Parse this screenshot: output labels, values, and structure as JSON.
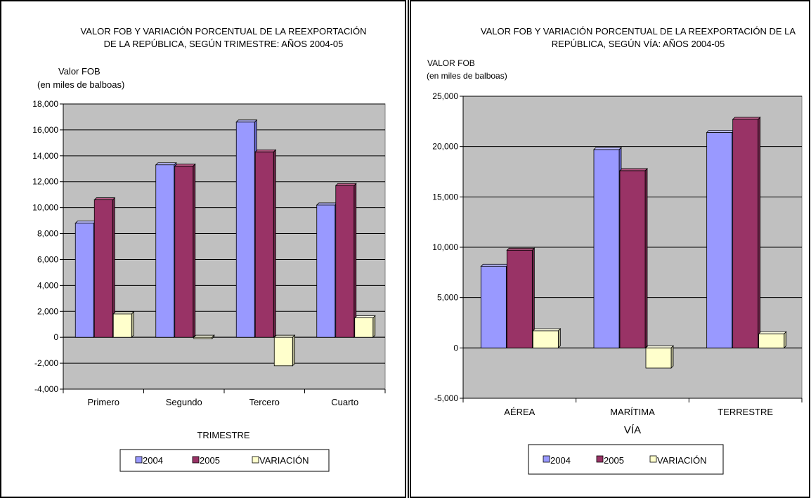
{
  "colors": {
    "s2004_front": "#9999ff",
    "s2004_top": "#bbbbff",
    "s2004_side": "#6666cc",
    "s2005_front": "#993366",
    "s2005_top": "#b85a85",
    "s2005_side": "#6b2447",
    "var_front": "#ffffcc",
    "var_top": "#ffffe6",
    "var_side": "#b3b38f",
    "plot_bg": "#c0c0c0",
    "plot_floor": "#9a9a9a"
  },
  "legend": {
    "items": [
      {
        "label": "2004",
        "color": "#9999ff"
      },
      {
        "label": "2005",
        "color": "#993366"
      },
      {
        "label": "VARIACIÓN",
        "color": "#ffffcc"
      }
    ]
  },
  "chart_data": [
    {
      "type": "bar",
      "title_line1": "VALOR FOB Y VARIACIÓN  PORCENTUAL DE LA REEXPORTACIÓN",
      "title_line2": "DE LA REPÚBLICA, SEGÚN TRIMESTRE:  AÑOS 2004-05",
      "ylabel_line1": "Valor FOB",
      "ylabel_line2": "(en miles de balboas)",
      "xlabel": "TRIMESTRE",
      "categories": [
        "Primero",
        "Segundo",
        "Tercero",
        "Cuarto"
      ],
      "series": [
        {
          "name": "2004",
          "values": [
            8800,
            13300,
            16600,
            10200
          ]
        },
        {
          "name": "2005",
          "values": [
            10600,
            13200,
            14300,
            11700
          ]
        },
        {
          "name": "VARIACIÓN",
          "values": [
            1800,
            -100,
            -2200,
            1500
          ]
        }
      ],
      "ylim": [
        -4000,
        18000
      ],
      "yticks": [
        -4000,
        -2000,
        0,
        2000,
        4000,
        6000,
        8000,
        10000,
        12000,
        14000,
        16000,
        18000
      ],
      "ytick_labels": [
        "-4,000",
        "-2,000",
        "0",
        "2,000",
        "4,000",
        "6,000",
        "8,000",
        "10,000",
        "12,000",
        "14,000",
        "16,000",
        "18,000"
      ],
      "grid": true,
      "legend_position": "bottom"
    },
    {
      "type": "bar",
      "title_line1": "VALOR FOB Y VARIACIÓN PORCENTUAL DE LA REEXPORTACIÓN DE LA",
      "title_line2": "REPÚBLICA, SEGÚN VÍA:  AÑOS 2004-05",
      "ylabel_line1": "VALOR FOB",
      "ylabel_line2": "(en miles de balboas)",
      "xlabel": "VÍA",
      "categories": [
        "AÉREA",
        "MARÍTIMA",
        "TERRESTRE"
      ],
      "series": [
        {
          "name": "2004",
          "values": [
            8100,
            19700,
            21400
          ]
        },
        {
          "name": "2005",
          "values": [
            9700,
            17600,
            22700
          ]
        },
        {
          "name": "VARIACIÓN",
          "values": [
            1700,
            -2000,
            1400
          ]
        }
      ],
      "ylim": [
        -5000,
        25000
      ],
      "yticks": [
        -5000,
        0,
        5000,
        10000,
        15000,
        20000,
        25000
      ],
      "ytick_labels": [
        "-5,000",
        "0",
        "5,000",
        "10,000",
        "15,000",
        "20,000",
        "25,000"
      ],
      "grid": true,
      "legend_position": "bottom"
    }
  ]
}
